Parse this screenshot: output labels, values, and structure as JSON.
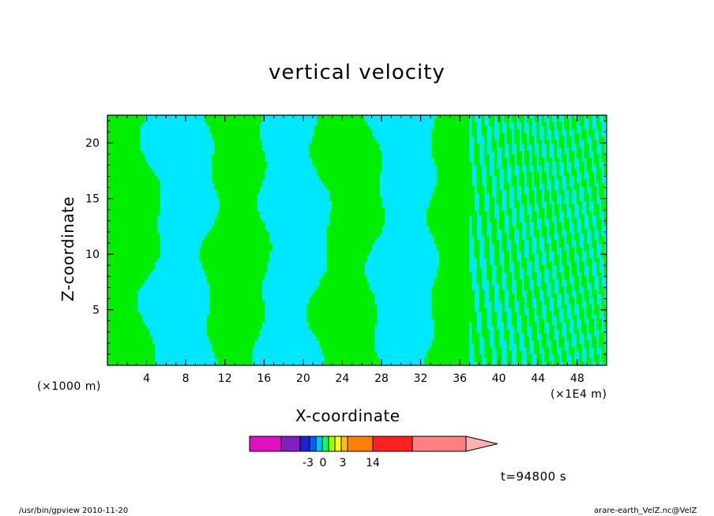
{
  "chart_data": {
    "type": "heatmap",
    "title": "vertical velocity",
    "xlabel": "X-coordinate",
    "ylabel": "Z-coordinate",
    "x_unit": "(×1E4 m)",
    "y_unit": "(×1000 m)",
    "x_ticks": [
      "4",
      "8",
      "12",
      "16",
      "20",
      "24",
      "28",
      "32",
      "36",
      "40",
      "44",
      "48"
    ],
    "y_ticks": [
      "5",
      "10",
      "15",
      "20"
    ],
    "xlim": [
      0,
      51
    ],
    "ylim": [
      0,
      22.5
    ],
    "contour_levels": [
      "negative",
      "positive"
    ],
    "fill_colors": {
      "negative": "#00e8ff",
      "positive": "#00ee00"
    },
    "colorbar": {
      "labels": [
        "-3",
        "0",
        "3",
        "14"
      ],
      "colors": [
        "#e010c0",
        "#8020c0",
        "#2020d0",
        "#0060ff",
        "#00c0ff",
        "#00ff60",
        "#a0ff00",
        "#ffff00",
        "#ffc000",
        "#ff8000",
        "#ff2020",
        "#ff8080",
        "#ffb0b0"
      ]
    },
    "time_label": "t=94800 s"
  },
  "footer": {
    "left": "/usr/bin/gpview  2010-11-20",
    "right": "arare-earth_VelZ.nc@VelZ"
  }
}
